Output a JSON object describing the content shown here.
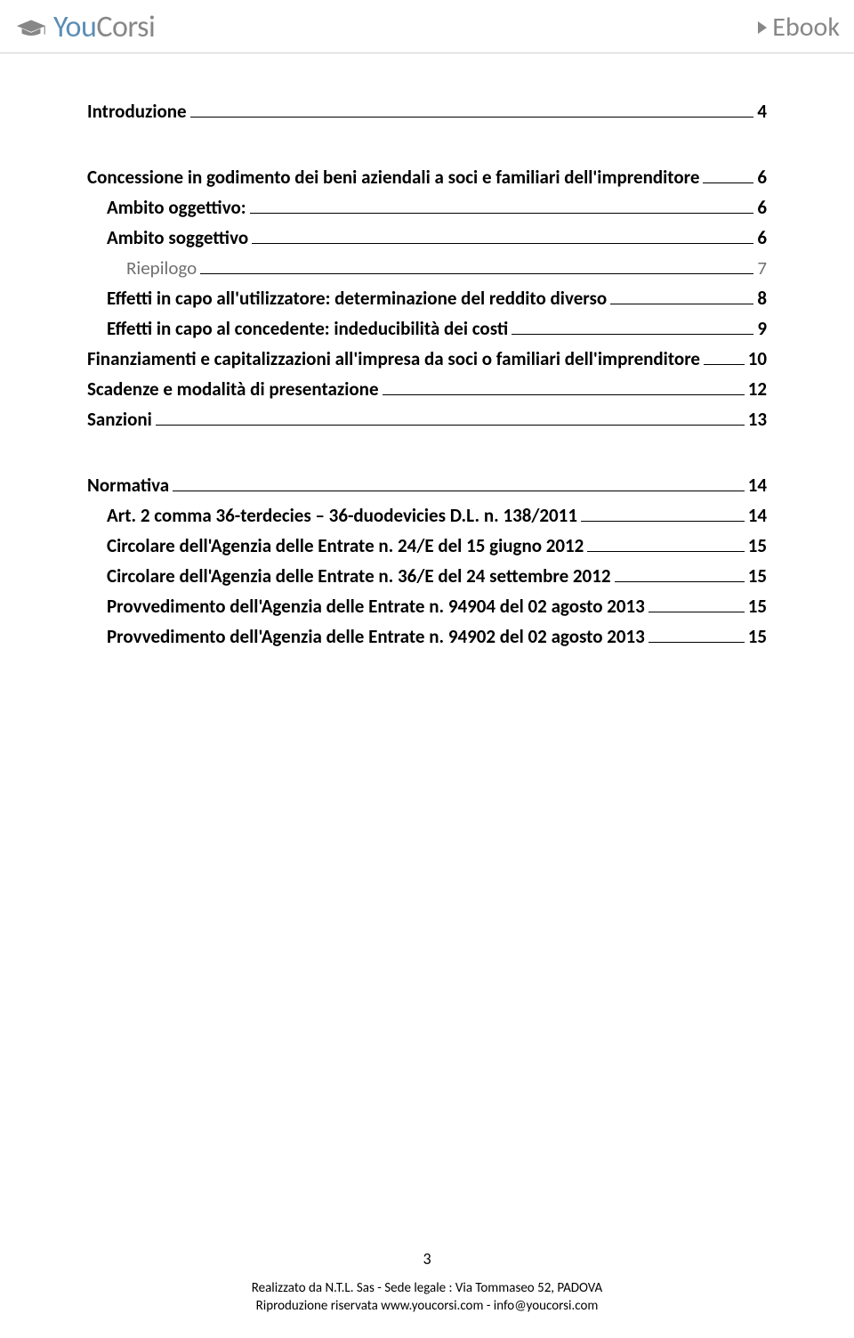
{
  "header": {
    "logo_you": "You",
    "logo_corsi": "Corsi",
    "ebook_label": "Ebook"
  },
  "toc": [
    {
      "label": "Introduzione",
      "page": "4",
      "style": "bold"
    },
    {
      "gap": "lg"
    },
    {
      "label": "Concessione in godimento dei beni aziendali a soci e familiari dell'imprenditore",
      "page": "6",
      "style": "bold"
    },
    {
      "label": "Ambito oggettivo:",
      "page": "6",
      "style": "sub bold"
    },
    {
      "label": "Ambito soggettivo",
      "page": "6",
      "style": "sub bold"
    },
    {
      "label": "Riepilogo",
      "page": "7",
      "style": "light"
    },
    {
      "label": "Effetti in capo all'utilizzatore: determinazione del reddito diverso",
      "page": "8",
      "style": "sub bold"
    },
    {
      "label": "Effetti in capo al concedente: indeducibilità dei costi",
      "page": "9",
      "style": "sub bold"
    },
    {
      "label": "Finanziamenti e capitalizzazioni all'impresa da soci o familiari dell'imprenditore",
      "page": "10",
      "style": "bold"
    },
    {
      "label": "Scadenze e modalità di presentazione",
      "page": "12",
      "style": "bold"
    },
    {
      "label": "Sanzioni",
      "page": "13",
      "style": "bold"
    },
    {
      "gap": "lg"
    },
    {
      "label": "Normativa",
      "page": "14",
      "style": "bold"
    },
    {
      "label": "Art. 2 comma 36-terdecies – 36-duodevicies D.L. n. 138/2011",
      "page": "14",
      "style": "sub bold"
    },
    {
      "label": "Circolare dell'Agenzia delle Entrate n. 24/E del 15 giugno 2012",
      "page": "15",
      "style": "sub bold"
    },
    {
      "label": "Circolare dell'Agenzia delle Entrate n. 36/E del 24 settembre 2012",
      "page": "15",
      "style": "sub bold"
    },
    {
      "label": "Provvedimento dell'Agenzia delle Entrate n. 94904 del 02 agosto 2013",
      "page": "15",
      "style": "sub bold"
    },
    {
      "label": "Provvedimento dell'Agenzia delle Entrate n. 94902 del 02 agosto 2013",
      "page": "15",
      "style": "sub bold"
    }
  ],
  "footer": {
    "page_number": "3",
    "line1": "Realizzato da N.T.L. Sas - Sede legale : Via Tommaseo 52, PADOVA",
    "line2": "Riproduzione riservata www.youcorsi.com - info@youcorsi.com"
  },
  "colors": {
    "logo_blue": "#5b8eb4",
    "logo_gray": "#878787",
    "text": "#000000",
    "light_text": "#707070",
    "rule": "#d0d0d0"
  }
}
